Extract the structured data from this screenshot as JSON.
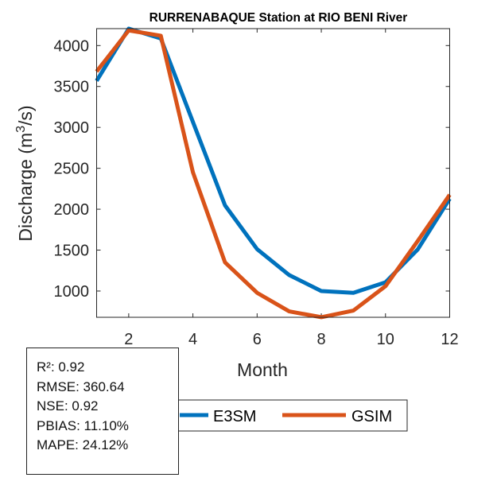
{
  "chart_data": {
    "type": "line",
    "title": "RURRENABAQUE  Station at  RIO BENI  River",
    "xlabel": "Month",
    "ylabel": "Discharge (m",
    "ylabel_sup": "3",
    "ylabel_end": "/s)",
    "x": [
      1,
      2,
      3,
      4,
      5,
      6,
      7,
      8,
      9,
      10,
      11,
      12
    ],
    "xlim": [
      1,
      12
    ],
    "ylim": [
      679,
      4207
    ],
    "xticks": [
      2,
      4,
      6,
      8,
      10,
      12
    ],
    "yticks": [
      1000,
      1500,
      2000,
      2500,
      3000,
      3500,
      4000
    ],
    "grid": false,
    "legend_placement": "bottom-outside",
    "series": [
      {
        "name": "E3SM",
        "color": "#0072BD",
        "values": [
          3569,
          4207,
          4087,
          3067,
          2047,
          1512,
          1195,
          1000,
          978,
          1107,
          1506,
          2128
        ]
      },
      {
        "name": "GSIM",
        "color": "#D95319",
        "values": [
          3683,
          4185,
          4120,
          2452,
          1350,
          978,
          751,
          680,
          761,
          1059,
          1609,
          2176
        ]
      }
    ]
  },
  "stats": {
    "r2": "R²: 0.92",
    "rmse": "RMSE: 360.64",
    "nse": "NSE: 0.92",
    "pbias": "PBIAS: 11.10%",
    "mape": "MAPE: 24.12%"
  }
}
